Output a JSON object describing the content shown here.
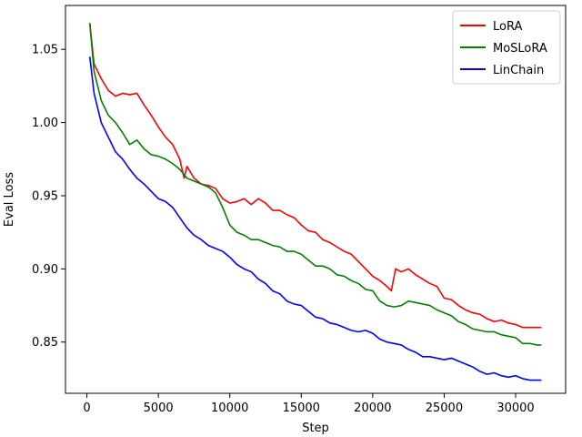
{
  "chart_data": {
    "type": "line",
    "xlabel": "Step",
    "ylabel": "Eval Loss",
    "xlim": [
      -1500,
      33500
    ],
    "ylim": [
      0.815,
      1.08
    ],
    "xticks": [
      0,
      5000,
      10000,
      15000,
      20000,
      25000,
      30000
    ],
    "xtick_labels": [
      "0",
      "5000",
      "10000",
      "15000",
      "20000",
      "25000",
      "30000"
    ],
    "yticks": [
      0.85,
      0.9,
      0.95,
      1.0,
      1.05
    ],
    "ytick_labels": [
      "0.85",
      "0.90",
      "0.95",
      "1.00",
      "1.05"
    ],
    "grid": false,
    "legend_position": "top-right",
    "series": [
      {
        "name": "LoRA",
        "color": "#ff0000",
        "x": [
          200,
          500,
          1000,
          1500,
          2000,
          2500,
          3000,
          3500,
          4000,
          4500,
          5000,
          5500,
          6000,
          6500,
          6800,
          7000,
          7500,
          8000,
          8500,
          9000,
          9500,
          10000,
          10500,
          11000,
          11500,
          12000,
          12500,
          13000,
          13500,
          14000,
          14500,
          15000,
          15500,
          16000,
          16500,
          17000,
          17500,
          18000,
          18500,
          19000,
          19500,
          20000,
          20500,
          21000,
          21300,
          21600,
          22000,
          22500,
          23000,
          23500,
          24000,
          24500,
          25000,
          25500,
          26000,
          26500,
          27000,
          27500,
          28000,
          28500,
          29000,
          29500,
          30000,
          30500,
          31000,
          31500,
          31800
        ],
        "y": [
          1.068,
          1.04,
          1.03,
          1.022,
          1.018,
          1.02,
          1.019,
          1.02,
          1.012,
          1.005,
          0.997,
          0.99,
          0.985,
          0.975,
          0.962,
          0.97,
          0.962,
          0.958,
          0.957,
          0.955,
          0.948,
          0.945,
          0.946,
          0.948,
          0.944,
          0.948,
          0.945,
          0.94,
          0.94,
          0.937,
          0.935,
          0.93,
          0.926,
          0.925,
          0.92,
          0.918,
          0.915,
          0.912,
          0.91,
          0.905,
          0.9,
          0.895,
          0.892,
          0.888,
          0.885,
          0.9,
          0.898,
          0.9,
          0.896,
          0.893,
          0.89,
          0.888,
          0.88,
          0.879,
          0.875,
          0.872,
          0.87,
          0.869,
          0.866,
          0.864,
          0.865,
          0.863,
          0.862,
          0.86,
          0.86,
          0.86,
          0.86
        ]
      },
      {
        "name": "MoSLoRA",
        "color": "#008000",
        "x": [
          200,
          500,
          1000,
          1500,
          2000,
          2500,
          3000,
          3500,
          4000,
          4500,
          5000,
          5500,
          6000,
          6500,
          7000,
          7500,
          8000,
          8500,
          9000,
          9500,
          10000,
          10500,
          11000,
          11500,
          12000,
          12500,
          13000,
          13500,
          14000,
          14500,
          15000,
          15500,
          16000,
          16500,
          17000,
          17500,
          18000,
          18500,
          19000,
          19500,
          20000,
          20500,
          21000,
          21500,
          22000,
          22500,
          23000,
          23500,
          24000,
          24500,
          25000,
          25500,
          26000,
          26500,
          27000,
          27500,
          28000,
          28500,
          29000,
          29500,
          30000,
          30500,
          31000,
          31500,
          31800
        ],
        "y": [
          1.068,
          1.035,
          1.015,
          1.005,
          1.0,
          0.993,
          0.985,
          0.988,
          0.982,
          0.978,
          0.977,
          0.975,
          0.972,
          0.968,
          0.962,
          0.96,
          0.958,
          0.956,
          0.952,
          0.942,
          0.93,
          0.925,
          0.923,
          0.92,
          0.92,
          0.918,
          0.916,
          0.915,
          0.912,
          0.912,
          0.91,
          0.906,
          0.902,
          0.902,
          0.9,
          0.896,
          0.895,
          0.892,
          0.89,
          0.886,
          0.885,
          0.878,
          0.875,
          0.874,
          0.875,
          0.878,
          0.877,
          0.876,
          0.875,
          0.872,
          0.87,
          0.868,
          0.864,
          0.862,
          0.859,
          0.858,
          0.857,
          0.857,
          0.855,
          0.854,
          0.853,
          0.849,
          0.849,
          0.848,
          0.848
        ]
      },
      {
        "name": "LinChain",
        "color": "#0000ff",
        "x": [
          200,
          500,
          1000,
          1500,
          2000,
          2500,
          3000,
          3500,
          4000,
          4500,
          5000,
          5500,
          6000,
          6500,
          7000,
          7500,
          8000,
          8500,
          9000,
          9500,
          10000,
          10500,
          11000,
          11500,
          12000,
          12500,
          13000,
          13500,
          14000,
          14500,
          15000,
          15500,
          16000,
          16500,
          17000,
          17500,
          18000,
          18500,
          19000,
          19500,
          20000,
          20500,
          21000,
          21500,
          22000,
          22500,
          23000,
          23500,
          24000,
          24500,
          25000,
          25500,
          26000,
          26500,
          27000,
          27500,
          28000,
          28500,
          29000,
          29500,
          30000,
          30500,
          31000,
          31500,
          31800
        ],
        "y": [
          1.045,
          1.02,
          1.0,
          0.99,
          0.98,
          0.975,
          0.968,
          0.962,
          0.958,
          0.953,
          0.948,
          0.946,
          0.942,
          0.935,
          0.928,
          0.923,
          0.92,
          0.916,
          0.914,
          0.912,
          0.908,
          0.903,
          0.9,
          0.898,
          0.893,
          0.89,
          0.885,
          0.883,
          0.878,
          0.876,
          0.875,
          0.871,
          0.867,
          0.866,
          0.863,
          0.862,
          0.86,
          0.858,
          0.857,
          0.858,
          0.856,
          0.852,
          0.85,
          0.849,
          0.848,
          0.845,
          0.843,
          0.84,
          0.84,
          0.839,
          0.838,
          0.839,
          0.837,
          0.835,
          0.833,
          0.83,
          0.828,
          0.829,
          0.827,
          0.826,
          0.827,
          0.825,
          0.824,
          0.824,
          0.824
        ]
      }
    ]
  }
}
